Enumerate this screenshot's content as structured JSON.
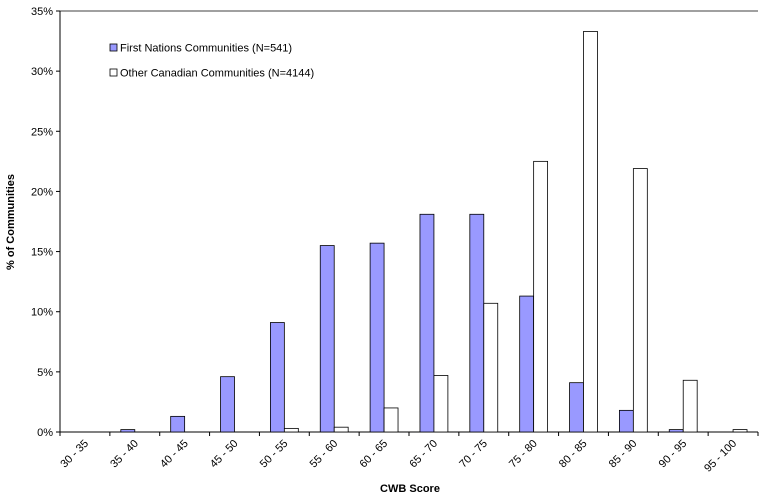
{
  "chart_data": {
    "type": "bar",
    "x_label": "CWB Score",
    "y_label": "% of Communities",
    "categories": [
      "30 - 35",
      "35 - 40",
      "40 - 45",
      "45 - 50",
      "50 - 55",
      "55 - 60",
      "60 - 65",
      "65 - 70",
      "70 - 75",
      "75 - 80",
      "80 - 85",
      "85 - 90",
      "90 - 95",
      "95 - 100"
    ],
    "series": [
      {
        "name": "First Nations Communities (N=541)",
        "color": "#9999ff",
        "values": [
          0,
          0.2,
          1.3,
          4.6,
          9.1,
          15.5,
          15.7,
          18.1,
          18.1,
          11.3,
          4.1,
          1.8,
          0.2,
          0
        ]
      },
      {
        "name": "Other Canadian Communities (N=4144)",
        "color": "#ffffff",
        "values": [
          0,
          0,
          0,
          0,
          0.3,
          0.4,
          2.0,
          4.7,
          10.7,
          22.5,
          33.3,
          21.9,
          4.3,
          0.2
        ]
      }
    ],
    "ylim": [
      0,
      35
    ],
    "yticks": [
      {
        "value": 0,
        "label": "0%"
      },
      {
        "value": 5,
        "label": "5%"
      },
      {
        "value": 10,
        "label": "10%"
      },
      {
        "value": 15,
        "label": "15%"
      },
      {
        "value": 20,
        "label": "20%"
      },
      {
        "value": 25,
        "label": "25%"
      },
      {
        "value": 30,
        "label": "30%"
      },
      {
        "value": 35,
        "label": "35%"
      }
    ],
    "grid": false,
    "legend": "top-left"
  }
}
